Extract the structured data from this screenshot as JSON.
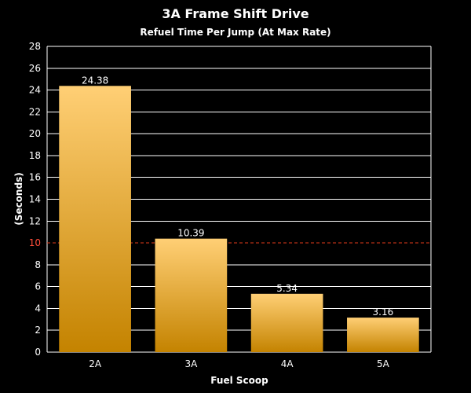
{
  "chart_data": {
    "type": "bar",
    "title": "3A Frame Shift Drive",
    "subtitle": "Refuel Time Per Jump (At Max Rate)",
    "xlabel": "Fuel Scoop",
    "ylabel": "(Seconds)",
    "categories": [
      "2A",
      "3A",
      "4A",
      "5A"
    ],
    "values": [
      24.38,
      10.39,
      5.34,
      3.16
    ],
    "data_labels": [
      "24.38",
      "10.39",
      "5.34",
      "3.16"
    ],
    "ylim": [
      0,
      28
    ],
    "yticks": [
      0,
      2,
      4,
      6,
      8,
      10,
      12,
      14,
      16,
      18,
      20,
      22,
      24,
      26,
      28
    ],
    "ytick_labels": [
      "0",
      "2",
      "4",
      "6",
      "8",
      "10",
      "12",
      "14",
      "16",
      "18",
      "20",
      "22",
      "24",
      "26",
      "28"
    ],
    "reference_line": {
      "value": 10,
      "style": "dashed"
    },
    "grid": true,
    "legend": "none",
    "colors": {
      "background": "#000000",
      "text": "#ffffff",
      "grid": "#ffffff",
      "bar_top": "#ffcf75",
      "bar_bottom": "#c48300",
      "reference_line": "#e03a1a",
      "reference_tick": "#ff4d3a"
    }
  }
}
